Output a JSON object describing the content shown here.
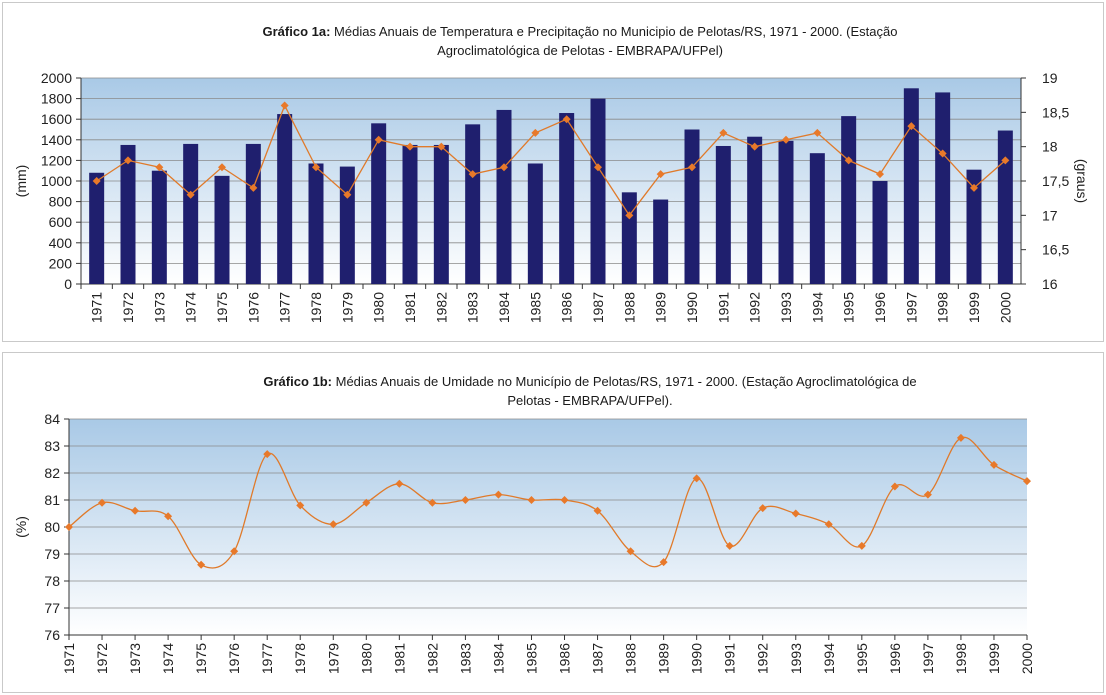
{
  "chart_data": [
    {
      "type": "bar",
      "title_bold": "Gráfico 1a:",
      "title_line1": " Médias Anuais de Temperatura e Precipitação no Municipio de Pelotas/RS, 1971 - 2000. (Estação",
      "title_line2": "Agroclimatológica de Pelotas - EMBRAPA/UFPel)",
      "ylabel": "(mm)",
      "y2label": "(graus)",
      "ylim": [
        0,
        2000
      ],
      "y2lim": [
        16,
        19
      ],
      "yticks": [
        "2000",
        "1800",
        "1600",
        "1400",
        "1200",
        "1000",
        "800",
        "600",
        "400",
        "200",
        "0"
      ],
      "y2ticks": [
        "19",
        "18,5",
        "18",
        "17,5",
        "17",
        "16,5",
        "16"
      ],
      "grid": true,
      "categories": [
        "1971",
        "1972",
        "1973",
        "1974",
        "1975",
        "1976",
        "1977",
        "1978",
        "1979",
        "1980",
        "1981",
        "1982",
        "1983",
        "1984",
        "1985",
        "1986",
        "1987",
        "1988",
        "1989",
        "1990",
        "1991",
        "1992",
        "1993",
        "1994",
        "1995",
        "1996",
        "1997",
        "1998",
        "1999",
        "2000"
      ],
      "series": [
        {
          "type": "bar",
          "axis": "left",
          "values": [
            1080,
            1350,
            1100,
            1360,
            1050,
            1360,
            1650,
            1170,
            1140,
            1560,
            1350,
            1350,
            1550,
            1690,
            1170,
            1660,
            1800,
            890,
            820,
            1500,
            1340,
            1430,
            1390,
            1270,
            1630,
            1000,
            1900,
            1860,
            1110,
            1490
          ]
        },
        {
          "type": "line",
          "axis": "right",
          "values": [
            17.5,
            17.8,
            17.7,
            17.3,
            17.7,
            17.4,
            18.6,
            17.7,
            17.3,
            18.1,
            18.0,
            18.0,
            17.6,
            17.7,
            18.2,
            18.4,
            17.7,
            17.0,
            17.6,
            17.7,
            18.2,
            18.0,
            18.1,
            18.2,
            17.8,
            17.6,
            18.3,
            17.9,
            17.4,
            17.8
          ]
        }
      ],
      "colors": {
        "bar": "#1f1f6e",
        "line": "#e07a2a",
        "marker": "#e8792a"
      }
    },
    {
      "type": "line",
      "title_bold": "Gráfico 1b:",
      "title_line1": " Médias Anuais de Umidade no Município de Pelotas/RS, 1971 - 2000. (Estação Agroclimatológica de",
      "title_line2": "Pelotas - EMBRAPA/UFPel).",
      "ylabel": "(%)",
      "ylim": [
        76,
        84
      ],
      "yticks": [
        "84",
        "83",
        "82",
        "81",
        "80",
        "79",
        "78",
        "77",
        "76"
      ],
      "grid": true,
      "categories": [
        "1971",
        "1972",
        "1973",
        "1974",
        "1975",
        "1976",
        "1977",
        "1978",
        "1979",
        "1980",
        "1981",
        "1982",
        "1983",
        "1984",
        "1985",
        "1986",
        "1987",
        "1988",
        "1989",
        "1990",
        "1991",
        "1992",
        "1993",
        "1994",
        "1995",
        "1996",
        "1997",
        "1998",
        "1999",
        "2000"
      ],
      "series": [
        {
          "type": "line",
          "values": [
            80.0,
            80.9,
            80.6,
            80.4,
            78.6,
            79.1,
            82.7,
            80.8,
            80.1,
            80.9,
            81.6,
            80.9,
            81.0,
            81.2,
            81.0,
            81.0,
            80.6,
            79.1,
            78.7,
            81.8,
            79.3,
            80.7,
            80.5,
            80.1,
            79.3,
            81.5,
            81.2,
            83.3,
            82.3,
            81.7
          ]
        }
      ],
      "colors": {
        "line": "#e07a2a",
        "marker": "#e8792a"
      }
    }
  ]
}
